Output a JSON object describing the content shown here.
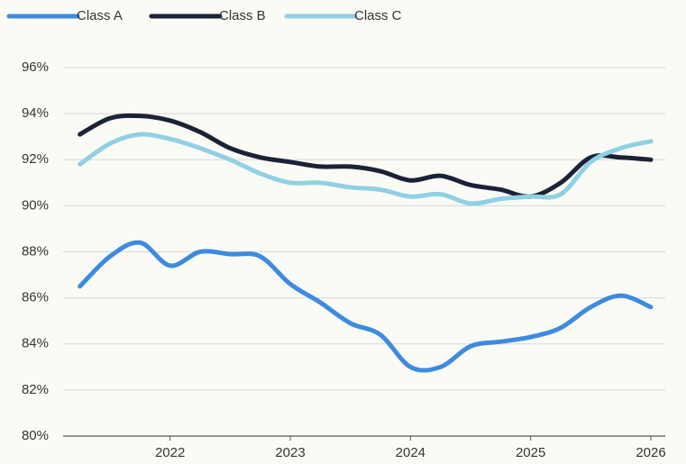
{
  "chart_data": {
    "type": "line",
    "x": [
      2021.25,
      2021.5,
      2021.75,
      2022,
      2022.25,
      2022.5,
      2022.75,
      2023,
      2023.25,
      2023.5,
      2023.75,
      2024,
      2024.25,
      2024.5,
      2024.75,
      2025,
      2025.25,
      2025.5,
      2025.75,
      2026
    ],
    "series": [
      {
        "name": "Class A",
        "color": "#3d8be0",
        "values": [
          86.5,
          87.8,
          88.4,
          87.4,
          88.0,
          87.9,
          87.8,
          86.6,
          85.8,
          84.9,
          84.4,
          83.0,
          83.0,
          83.9,
          84.1,
          84.3,
          84.7,
          85.6,
          86.1,
          85.6
        ]
      },
      {
        "name": "Class B",
        "color": "#1b2238",
        "values": [
          93.1,
          93.8,
          93.9,
          93.7,
          93.2,
          92.5,
          92.1,
          91.9,
          91.7,
          91.7,
          91.5,
          91.1,
          91.3,
          90.9,
          90.7,
          90.4,
          91.0,
          92.1,
          92.1,
          92.0
        ]
      },
      {
        "name": "Class C",
        "color": "#8fd0e4",
        "values": [
          91.8,
          92.7,
          93.1,
          92.9,
          92.5,
          92.0,
          91.4,
          91.0,
          91.0,
          90.8,
          90.7,
          90.4,
          90.5,
          90.1,
          90.3,
          90.4,
          90.5,
          91.9,
          92.5,
          92.8
        ]
      }
    ],
    "xlim": [
      2021.11,
      2026.12
    ],
    "xticks": [
      2022,
      2023,
      2024,
      2025,
      2026
    ],
    "ylim": [
      80,
      96
    ],
    "yticks": [
      {
        "value": 80,
        "label": "80%"
      },
      {
        "value": 82,
        "label": "82%"
      },
      {
        "value": 84,
        "label": "84%"
      },
      {
        "value": 86,
        "label": "86%"
      },
      {
        "value": 88,
        "label": "88%"
      },
      {
        "value": 90,
        "label": "90%"
      },
      {
        "value": 92,
        "label": "92%"
      },
      {
        "value": 94,
        "label": "94%"
      },
      {
        "value": 96,
        "label": "96%"
      }
    ],
    "grid": true,
    "legend": "top"
  }
}
